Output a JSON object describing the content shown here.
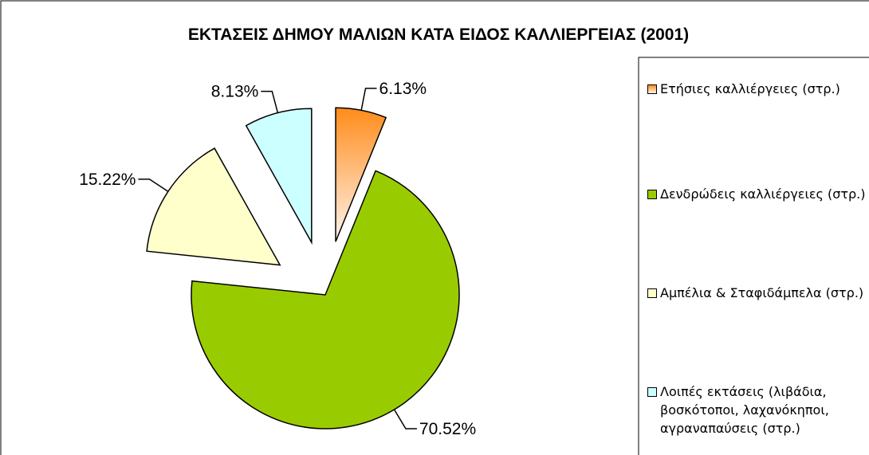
{
  "chart_data": {
    "type": "pie",
    "title": "ΕΚΤΑΣΕΙΣ ΔΗΜΟΥ ΜΑΛΙΩΝ ΚΑΤΑ ΕΙΔΟΣ ΚΑΛΛΙΕΡΓΕΙΑΣ  (2001)",
    "categories": [
      "Ετήσιες καλλιέργειες (στρ.)",
      "Δενδρώδεις καλλιέργειες (στρ.)",
      "Αμπέλια & Σταφιδάμπελα (στρ.)",
      "Λοιπές εκτάσεις (λιβάδια, βοσκότοποι, λαχανόκηποι, αγραναπαύσεις (στρ.)"
    ],
    "values": [
      6.13,
      70.52,
      15.22,
      8.13
    ],
    "value_labels": [
      "6.13%",
      "70.52%",
      "15.22%",
      "8.13%"
    ],
    "colors": [
      "url(#g0)",
      "#99cc00",
      "#ffffcc",
      "#ccffff"
    ],
    "exploded": [
      true,
      false,
      true,
      true
    ],
    "legend": "right"
  }
}
